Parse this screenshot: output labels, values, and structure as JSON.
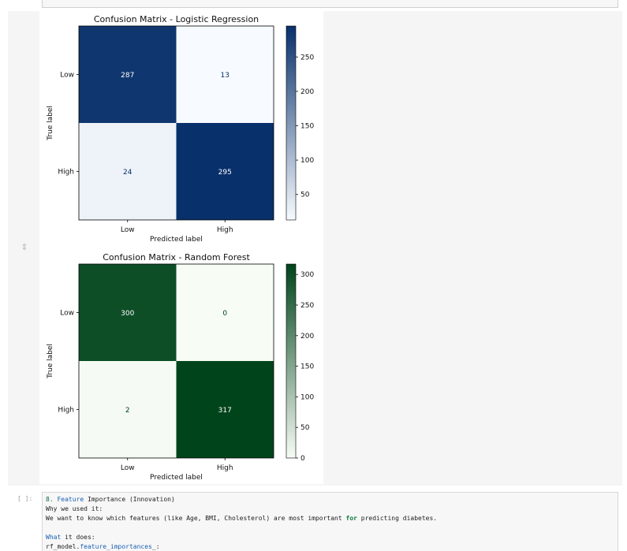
{
  "notebook": {
    "next_cell_prompt": "[ ]:",
    "collapse_icon": "collapse-output-icon",
    "code_lines": [
      {
        "segments": [
          {
            "t": "8. ",
            "c": "num"
          },
          {
            "t": "Feature",
            "c": "kw"
          },
          {
            "t": " Importance (Innovation)",
            "c": ""
          }
        ]
      },
      {
        "segments": [
          {
            "t": "Why we used it:",
            "c": ""
          }
        ]
      },
      {
        "segments": [
          {
            "t": "We want to know which features (like Age, BMI, Cholesterol) are most important ",
            "c": ""
          },
          {
            "t": "for",
            "c": "kwb"
          },
          {
            "t": " predicting diabetes.",
            "c": ""
          }
        ]
      },
      {
        "segments": [
          {
            "t": " ",
            "c": ""
          }
        ]
      },
      {
        "segments": [
          {
            "t": "What",
            "c": "kw"
          },
          {
            "t": " it does:",
            "c": ""
          }
        ]
      },
      {
        "segments": [
          {
            "t": "rf_model.",
            "c": ""
          },
          {
            "t": "feature_importances",
            "c": "kw"
          },
          {
            "t": "_:",
            "c": ""
          }
        ]
      }
    ]
  },
  "chart_data": [
    {
      "type": "heatmap",
      "title": "Confusion Matrix - Logistic Regression",
      "xlabel": "Predicted label",
      "ylabel": "True label",
      "x_categories": [
        "Low",
        "High"
      ],
      "y_categories": [
        "Low",
        "High"
      ],
      "matrix": [
        [
          287,
          13
        ],
        [
          24,
          295
        ]
      ],
      "colormap": "Blues",
      "cmap_low": "#f7fbff",
      "cmap_high": "#08306b",
      "colorbar_range": [
        13,
        295
      ],
      "colorbar_ticks": [
        50,
        100,
        150,
        200,
        250
      ],
      "dark_text_color": "#08306b",
      "light_text_color": "#ffffff"
    },
    {
      "type": "heatmap",
      "title": "Confusion Matrix - Random Forest",
      "xlabel": "Predicted label",
      "ylabel": "True label",
      "x_categories": [
        "Low",
        "High"
      ],
      "y_categories": [
        "Low",
        "High"
      ],
      "matrix": [
        [
          300,
          0
        ],
        [
          2,
          317
        ]
      ],
      "colormap": "Greens",
      "cmap_low": "#f7fcf5",
      "cmap_high": "#00441b",
      "colorbar_range": [
        0,
        317
      ],
      "colorbar_ticks": [
        0,
        50,
        100,
        150,
        200,
        250,
        300
      ],
      "dark_text_color": "#00441b",
      "light_text_color": "#ffffff"
    }
  ]
}
